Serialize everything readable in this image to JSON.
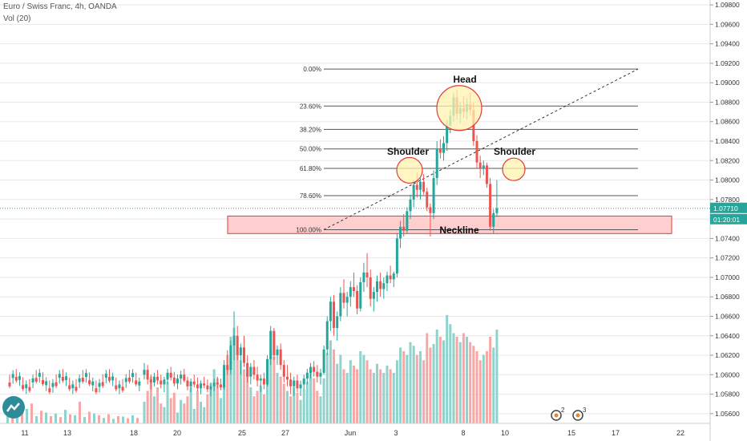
{
  "header": {
    "symbol_line": "Euro / Swiss Franc, 4h, OANDA",
    "volume_line": "Vol (20)"
  },
  "colors": {
    "up": "#26a69a",
    "down": "#ef5350",
    "vol_up": "#8fd3cc",
    "vol_down": "#f7a8a6",
    "fib_line": "#555555",
    "circle_stroke": "#e53935",
    "circle_fill": "#fff3b0",
    "zone_fill": "#ffcfcf",
    "zone_stroke": "#e53935",
    "price_label": "#26a69a",
    "grid": "#e8e8e8"
  },
  "chart_data": {
    "type": "candlestick",
    "y_range": [
      1.055,
      1.0985
    ],
    "y_ticks": [
      "1.09800",
      "1.09600",
      "1.09400",
      "1.09200",
      "1.09000",
      "1.08800",
      "1.08600",
      "1.08400",
      "1.08200",
      "1.08000",
      "1.07800",
      "1.07600",
      "1.07400",
      "1.07200",
      "1.07000",
      "1.06800",
      "1.06600",
      "1.06400",
      "1.06200",
      "1.06000",
      "1.05800",
      "1.05600"
    ],
    "x_ticks": [
      "11",
      "13",
      "18",
      "20",
      "25",
      "27",
      "Jun",
      "3",
      "8",
      "10",
      "15",
      "17",
      "22"
    ],
    "current_price": "1.07710",
    "current_price_value": 1.0771,
    "countdown": "01:20:01",
    "candles": [
      [
        1.06,
        1.0612,
        1.0595,
        1.0605
      ],
      [
        1.0605,
        1.061,
        1.059,
        1.0595
      ],
      [
        1.0595,
        1.06,
        1.0585,
        1.0592
      ],
      [
        1.0592,
        1.0602,
        1.0588,
        1.0598
      ],
      [
        1.0598,
        1.0605,
        1.059,
        1.0594
      ],
      [
        1.0594,
        1.06,
        1.0586,
        1.059
      ],
      [
        1.059,
        1.0598,
        1.0582,
        1.0595
      ],
      [
        1.0595,
        1.0606,
        1.059,
        1.0602
      ],
      [
        1.0602,
        1.0608,
        1.0594,
        1.0597
      ],
      [
        1.0597,
        1.0603,
        1.0588,
        1.0591
      ],
      [
        1.0591,
        1.06,
        1.0585,
        1.0596
      ],
      [
        1.0596,
        1.0604,
        1.059,
        1.06
      ],
      [
        1.06,
        1.0606,
        1.0592,
        1.0594
      ],
      [
        1.0594,
        1.0598,
        1.0584,
        1.0588
      ],
      [
        1.0588,
        1.0596,
        1.0582,
        1.0593
      ],
      [
        1.0593,
        1.06,
        1.0587,
        1.059
      ],
      [
        1.059,
        1.0597,
        1.0583,
        1.0586
      ],
      [
        1.0586,
        1.0594,
        1.058,
        1.0591
      ],
      [
        1.0591,
        1.0598,
        1.0586,
        1.0589
      ],
      [
        1.0589,
        1.0595,
        1.0582,
        1.0585
      ],
      [
        1.0585,
        1.0592,
        1.0578,
        1.0588
      ],
      [
        1.0588,
        1.0596,
        1.0583,
        1.0592
      ],
      [
        1.0592,
        1.0598,
        1.0586,
        1.059
      ],
      [
        1.059,
        1.0596,
        1.0584,
        1.0587
      ],
      [
        1.0587,
        1.0615,
        1.0585,
        1.061
      ],
      [
        1.061,
        1.0625,
        1.06,
        1.0605
      ],
      [
        1.0605,
        1.0635,
        1.06,
        1.063
      ],
      [
        1.063,
        1.0665,
        1.0615,
        1.064
      ],
      [
        1.064,
        1.065,
        1.0615,
        1.062
      ],
      [
        1.062,
        1.0632,
        1.06,
        1.0628
      ],
      [
        1.0628,
        1.064,
        1.0608,
        1.0612
      ],
      [
        1.0612,
        1.062,
        1.0592,
        1.0598
      ],
      [
        1.0598,
        1.0612,
        1.059,
        1.0608
      ],
      [
        1.0608,
        1.0615,
        1.0595,
        1.06
      ],
      [
        1.06,
        1.0608,
        1.0588,
        1.0594
      ],
      [
        1.0594,
        1.06,
        1.0582,
        1.0596
      ],
      [
        1.0596,
        1.0602,
        1.0585,
        1.059
      ],
      [
        1.059,
        1.062,
        1.0588,
        1.0616
      ],
      [
        1.0616,
        1.065,
        1.061,
        1.0645
      ],
      [
        1.0645,
        1.0648,
        1.0615,
        1.062
      ],
      [
        1.062,
        1.063,
        1.061,
        1.0626
      ],
      [
        1.0626,
        1.0632,
        1.0605,
        1.061
      ],
      [
        1.061,
        1.0615,
        1.0592,
        1.0598
      ],
      [
        1.0598,
        1.061,
        1.0588,
        1.0595
      ],
      [
        1.0595,
        1.0602,
        1.058,
        1.0588
      ],
      [
        1.0588,
        1.0598,
        1.0578,
        1.0594
      ],
      [
        1.0594,
        1.06,
        1.0582,
        1.0586
      ],
      [
        1.0586,
        1.0594,
        1.0578,
        1.059
      ],
      [
        1.059,
        1.06,
        1.0585,
        1.0596
      ],
      [
        1.0596,
        1.0606,
        1.059,
        1.0602
      ],
      [
        1.0602,
        1.0612,
        1.0596,
        1.0608
      ],
      [
        1.0608,
        1.0614,
        1.0598,
        1.0603
      ],
      [
        1.0603,
        1.061,
        1.0592,
        1.0598
      ],
      [
        1.0598,
        1.0606,
        1.059,
        1.0602
      ],
      [
        1.0602,
        1.063,
        1.06,
        1.0626
      ],
      [
        1.0626,
        1.066,
        1.062,
        1.0655
      ],
      [
        1.0655,
        1.068,
        1.0645,
        1.0675
      ],
      [
        1.0675,
        1.0682,
        1.064,
        1.0648
      ],
      [
        1.0648,
        1.0665,
        1.0635,
        1.066
      ],
      [
        1.066,
        1.069,
        1.0655,
        1.0684
      ],
      [
        1.0684,
        1.0698,
        1.0668,
        1.0674
      ],
      [
        1.0674,
        1.0685,
        1.066,
        1.068
      ],
      [
        1.068,
        1.0696,
        1.067,
        1.069
      ],
      [
        1.069,
        1.0705,
        1.068,
        1.0686
      ],
      [
        1.0686,
        1.0692,
        1.0662,
        1.0668
      ],
      [
        1.0668,
        1.07,
        1.0665,
        1.0695
      ],
      [
        1.0695,
        1.0715,
        1.0685,
        1.0705
      ],
      [
        1.0705,
        1.0725,
        1.069,
        1.07
      ],
      [
        1.07,
        1.0708,
        1.067,
        1.0678
      ],
      [
        1.0678,
        1.069,
        1.0665,
        1.0685
      ],
      [
        1.0685,
        1.0702,
        1.0675,
        1.0696
      ],
      [
        1.0696,
        1.0705,
        1.068,
        1.0688
      ],
      [
        1.0688,
        1.07,
        1.0678,
        1.0694
      ],
      [
        1.0694,
        1.0706,
        1.0686,
        1.0702
      ],
      [
        1.0702,
        1.0712,
        1.0694,
        1.0698
      ],
      [
        1.0698,
        1.0706,
        1.069,
        1.0704
      ],
      [
        1.0704,
        1.0745,
        1.07,
        1.074
      ],
      [
        1.074,
        1.0758,
        1.073,
        1.0752
      ],
      [
        1.0752,
        1.0765,
        1.0742,
        1.0748
      ],
      [
        1.0748,
        1.0772,
        1.0745,
        1.0768
      ],
      [
        1.0768,
        1.0785,
        1.076,
        1.078
      ],
      [
        1.078,
        1.08,
        1.0772,
        1.0795
      ],
      [
        1.0795,
        1.0808,
        1.0782,
        1.079
      ],
      [
        1.079,
        1.0802,
        1.078,
        1.0798
      ],
      [
        1.0798,
        1.0806,
        1.0785,
        1.0788
      ],
      [
        1.0788,
        1.0792,
        1.0768,
        1.0772
      ],
      [
        1.0772,
        1.0776,
        1.0742,
        1.0766
      ],
      [
        1.0766,
        1.081,
        1.076,
        1.0802
      ],
      [
        1.0802,
        1.084,
        1.0795,
        1.0832
      ],
      [
        1.0832,
        1.0842,
        1.0822,
        1.0828
      ],
      [
        1.0828,
        1.0845,
        1.082,
        1.0838
      ],
      [
        1.0838,
        1.0862,
        1.083,
        1.0856
      ],
      [
        1.0856,
        1.0872,
        1.0848,
        1.0866
      ],
      [
        1.0866,
        1.089,
        1.086,
        1.0885
      ],
      [
        1.0885,
        1.0893,
        1.0862,
        1.0868
      ],
      [
        1.0868,
        1.088,
        1.0858,
        1.0874
      ],
      [
        1.0874,
        1.0886,
        1.0864,
        1.087
      ],
      [
        1.087,
        1.0884,
        1.0862,
        1.0878
      ],
      [
        1.0878,
        1.089,
        1.0866,
        1.0872
      ],
      [
        1.0872,
        1.088,
        1.0835,
        1.084
      ],
      [
        1.084,
        1.0846,
        1.0812,
        1.0818
      ],
      [
        1.0818,
        1.0825,
        1.0802,
        1.0812
      ],
      [
        1.0812,
        1.082,
        1.0805,
        1.0815
      ],
      [
        1.0815,
        1.0818,
        1.0792,
        1.0796
      ],
      [
        1.0796,
        1.0802,
        1.0748,
        1.0752
      ],
      [
        1.0752,
        1.077,
        1.0745,
        1.0766
      ],
      [
        1.0766,
        1.08,
        1.0762,
        1.0771
      ]
    ],
    "volume": [
      [
        120,
        "u"
      ],
      [
        180,
        "d"
      ],
      [
        260,
        "d"
      ],
      [
        150,
        "u"
      ],
      [
        200,
        "d"
      ],
      [
        110,
        "d"
      ],
      [
        90,
        "u"
      ],
      [
        230,
        "u"
      ],
      [
        140,
        "d"
      ],
      [
        170,
        "d"
      ],
      [
        60,
        "u"
      ],
      [
        130,
        "u"
      ],
      [
        110,
        "d"
      ],
      [
        150,
        "d"
      ],
      [
        200,
        "u"
      ],
      [
        80,
        "u"
      ],
      [
        180,
        "d"
      ],
      [
        120,
        "u"
      ],
      [
        90,
        "u"
      ],
      [
        160,
        "d"
      ],
      [
        220,
        "u"
      ],
      [
        300,
        "u"
      ],
      [
        250,
        "d"
      ],
      [
        140,
        "u"
      ],
      [
        220,
        "u"
      ],
      [
        380,
        "d"
      ],
      [
        480,
        "u"
      ],
      [
        530,
        "u"
      ],
      [
        420,
        "d"
      ],
      [
        350,
        "u"
      ],
      [
        300,
        "d"
      ],
      [
        280,
        "d"
      ],
      [
        200,
        "u"
      ],
      [
        150,
        "d"
      ],
      [
        180,
        "d"
      ],
      [
        210,
        "u"
      ],
      [
        160,
        "d"
      ],
      [
        240,
        "u"
      ],
      [
        400,
        "u"
      ],
      [
        370,
        "d"
      ],
      [
        280,
        "u"
      ],
      [
        260,
        "d"
      ],
      [
        220,
        "d"
      ],
      [
        180,
        "u"
      ],
      [
        150,
        "d"
      ],
      [
        200,
        "u"
      ],
      [
        170,
        "d"
      ],
      [
        130,
        "u"
      ],
      [
        190,
        "u"
      ],
      [
        230,
        "u"
      ],
      [
        300,
        "u"
      ],
      [
        250,
        "d"
      ],
      [
        180,
        "d"
      ],
      [
        150,
        "u"
      ],
      [
        250,
        "u"
      ],
      [
        390,
        "u"
      ],
      [
        460,
        "u"
      ],
      [
        410,
        "d"
      ],
      [
        330,
        "u"
      ],
      [
        380,
        "u"
      ],
      [
        300,
        "d"
      ],
      [
        280,
        "u"
      ],
      [
        350,
        "u"
      ],
      [
        320,
        "d"
      ],
      [
        300,
        "d"
      ],
      [
        400,
        "u"
      ],
      [
        380,
        "u"
      ],
      [
        350,
        "d"
      ],
      [
        300,
        "d"
      ],
      [
        280,
        "u"
      ],
      [
        330,
        "u"
      ],
      [
        300,
        "d"
      ],
      [
        280,
        "u"
      ],
      [
        320,
        "u"
      ],
      [
        300,
        "d"
      ],
      [
        280,
        "u"
      ],
      [
        350,
        "u"
      ],
      [
        420,
        "u"
      ],
      [
        400,
        "d"
      ],
      [
        380,
        "u"
      ],
      [
        450,
        "u"
      ],
      [
        430,
        "u"
      ],
      [
        380,
        "d"
      ],
      [
        400,
        "u"
      ],
      [
        350,
        "d"
      ],
      [
        500,
        "d"
      ],
      [
        420,
        "d"
      ],
      [
        440,
        "u"
      ],
      [
        520,
        "u"
      ],
      [
        480,
        "d"
      ],
      [
        460,
        "u"
      ],
      [
        600,
        "u"
      ],
      [
        550,
        "u"
      ],
      [
        500,
        "u"
      ],
      [
        480,
        "d"
      ],
      [
        450,
        "u"
      ],
      [
        500,
        "d"
      ],
      [
        480,
        "u"
      ],
      [
        450,
        "d"
      ],
      [
        430,
        "d"
      ],
      [
        400,
        "d"
      ],
      [
        350,
        "d"
      ],
      [
        380,
        "u"
      ],
      [
        400,
        "d"
      ],
      [
        480,
        "d"
      ],
      [
        420,
        "u"
      ],
      [
        520,
        "u"
      ]
    ],
    "fib_levels": [
      {
        "label": "0.00%",
        "value": 1.0914
      },
      {
        "label": "23.60%",
        "value": 1.0876
      },
      {
        "label": "38.20%",
        "value": 1.0852
      },
      {
        "label": "50.00%",
        "value": 1.0832
      },
      {
        "label": "61.80%",
        "value": 1.0812
      },
      {
        "label": "78.60%",
        "value": 1.0784
      },
      {
        "label": "100.00%",
        "value": 1.0749
      }
    ],
    "annotations": [
      "Head",
      "Shoulder",
      "Shoulder",
      "Neckline"
    ],
    "event_markers": [
      "2",
      "3"
    ]
  }
}
